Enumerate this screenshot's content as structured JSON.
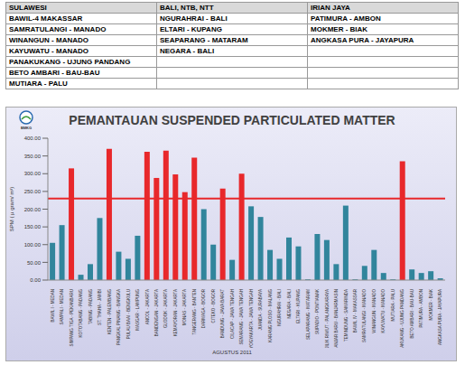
{
  "table": {
    "header": [
      "SULAWESI",
      "BALI, NTB, NTT",
      "IRIAN JAYA"
    ],
    "rows": [
      [
        "BAWIL-4 MAKASSAR",
        "NGURAHRAI - BALI",
        "PATIMURA - AMBON"
      ],
      [
        "SAMRATULANGI - MANADO",
        "ELTARI - KUPANG",
        "MOKMER - BIAK"
      ],
      [
        "WINANGUN - MANADO",
        "SEAPARANG - MATARAM",
        "ANGKASA PURA - JAYAPURA"
      ],
      [
        "KAYUWATU - MANADO",
        "NEGARA - BALI",
        null
      ],
      [
        "PANAKUKANG - UJUNG PANDANG",
        null,
        null
      ],
      [
        "BETO AMBARI - BAU-BAU",
        null,
        null
      ],
      [
        "MUTIARA - PALU",
        null,
        null
      ]
    ]
  },
  "logo_text": "BMKG",
  "chart_data": {
    "type": "bar",
    "title": "PEMANTAUAN SUSPENDED PARTICULATED MATTER",
    "y_label": "SPM ( µ gram/ m³)",
    "x_label": "AGUSTUS 2011",
    "categories": [
      "BAWIL I - MEDAN",
      "SAMPALI - MEDAN",
      "SIMPANG TIGA - PEKANBARU",
      "KOTOTABANG - PADANG",
      "TABING - PADANG",
      "ST. THAHA - JAMBI",
      "KENTEN - PALEMBANG",
      "PANGKAL PINANG - BANGKA",
      "PULAU BAAI - BENGKULU",
      "MASGAR - LAMPUNG",
      "ANCOL - JAKARTA",
      "BANDENGAN - JAKARTA",
      "GLODOK - JAKARTA",
      "KEMAYORAN - JAKARTA",
      "MONAS - JAKARTA",
      "TANGERANG - BANTEN",
      "DARMAGA - BOGOR",
      "CITEKO - BOGOR",
      "BANDUNG - JAWA BARAT",
      "CILACAP - JAWA TENGAH",
      "SEMARANG - JAWA TENGAH",
      "YOGYAKARTA - JAWA TENGAH",
      "JUANDA - SURABAYA",
      "KARANG PLOSO - MALANG",
      "NGURAHRAI - BALI",
      "NEGARA - BALI",
      "ELTARI - KUPANG",
      "SELAPARANG - MATARAM",
      "SUPADIO - PONTIANAK",
      "TJILIK RIWUT - PALANGKARAYA",
      "BANJAR BARU - BANJARMASIN",
      "TEMINDUNG - SAMARINDA",
      "BAWIL IV - MAKASSAR",
      "SAMRATULANGI - MANADO",
      "WINANGUN - MANADO",
      "KAYUWATU - MANADO",
      "MUTIARA - PALU",
      "PANAKUKANG - UJUNG PANDANG",
      "BETO AMBARI - BAU-BAU",
      "PATIMURA - AMBON",
      "MOKMER - BIAK",
      "ANGKASA PURA - JAYAPURA"
    ],
    "values": [
      105,
      155,
      315,
      15,
      45,
      175,
      370,
      80,
      60,
      125,
      362,
      288,
      365,
      298,
      248,
      345,
      200,
      100,
      258,
      57,
      300,
      208,
      178,
      85,
      60,
      120,
      95,
      2,
      130,
      113,
      45,
      210,
      2,
      40,
      85,
      20,
      2,
      335,
      30,
      20,
      25,
      5
    ],
    "colors": [
      "#31859c",
      "#31859c",
      "#e8282b",
      "#31859c",
      "#31859c",
      "#31859c",
      "#e8282b",
      "#31859c",
      "#31859c",
      "#31859c",
      "#e8282b",
      "#e8282b",
      "#e8282b",
      "#e8282b",
      "#e8282b",
      "#e8282b",
      "#31859c",
      "#31859c",
      "#e8282b",
      "#31859c",
      "#e8282b",
      "#31859c",
      "#31859c",
      "#31859c",
      "#31859c",
      "#31859c",
      "#31859c",
      "#31859c",
      "#31859c",
      "#31859c",
      "#31859c",
      "#31859c",
      "#31859c",
      "#31859c",
      "#31859c",
      "#31859c",
      "#31859c",
      "#e8282b",
      "#31859c",
      "#31859c",
      "#31859c",
      "#31859c"
    ],
    "threshold": 230,
    "threshold_color": "#e8282b",
    "ylim": [
      0,
      400
    ],
    "yticks": [
      {
        "value": 0,
        "label": "0.00"
      },
      {
        "value": 50,
        "label": "50.00"
      },
      {
        "value": 100,
        "label": "100.00"
      },
      {
        "value": 150,
        "label": "150.00"
      },
      {
        "value": 200,
        "label": "200.00"
      },
      {
        "value": 250,
        "label": "250.00"
      },
      {
        "value": 300,
        "label": "300.00"
      },
      {
        "value": 350,
        "label": "350.00"
      },
      {
        "value": 400,
        "label": "400.00"
      }
    ],
    "grid": false
  }
}
